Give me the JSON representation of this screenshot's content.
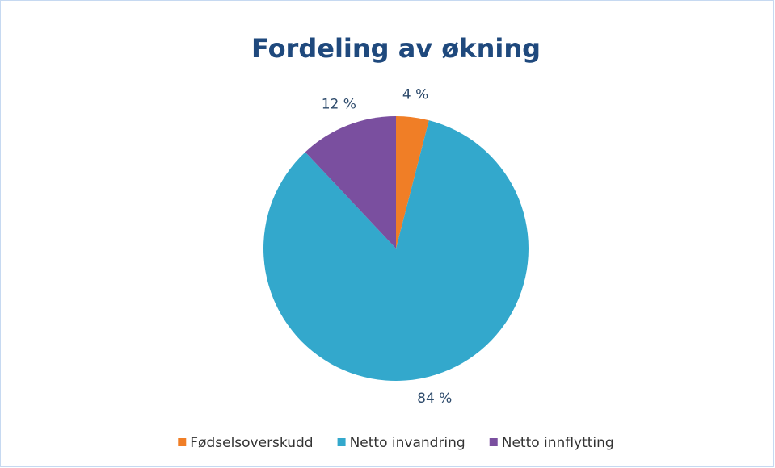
{
  "chart_data": {
    "type": "pie",
    "title": "Fordeling av økning",
    "categories": [
      "Fødselsoverskudd",
      "Netto invandring",
      "Netto innflytting"
    ],
    "values": [
      4,
      84,
      12
    ],
    "value_labels": [
      "4 %",
      "84 %",
      "12 %"
    ],
    "colors": [
      "#f07e26",
      "#33a8cc",
      "#7a4f9f"
    ],
    "legend": "bottom"
  }
}
